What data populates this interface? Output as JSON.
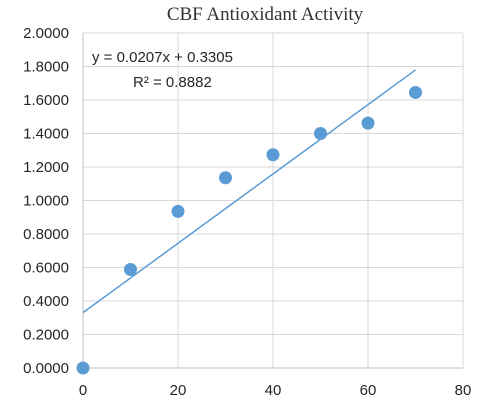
{
  "chart_data": {
    "type": "scatter",
    "title": "CBF Antioxidant Activity",
    "xlabel": "",
    "ylabel": "",
    "xlim": [
      0,
      80
    ],
    "ylim": [
      0,
      2
    ],
    "x_ticks": [
      0,
      20,
      40,
      60,
      80
    ],
    "y_ticks": [
      0,
      0.2,
      0.4,
      0.6,
      0.8,
      1.0,
      1.2,
      1.4,
      1.6,
      1.8,
      2.0
    ],
    "y_tick_labels": [
      "0.0000",
      "0.2000",
      "0.4000",
      "0.6000",
      "0.8000",
      "1.0000",
      "1.2000",
      "1.4000",
      "1.6000",
      "1.8000",
      "2.0000"
    ],
    "x_tick_labels": [
      "0",
      "20",
      "40",
      "60",
      "80"
    ],
    "grid": true,
    "series": [
      {
        "x": [
          0,
          10,
          20,
          30,
          40,
          50,
          60,
          70
        ],
        "y": [
          0.0,
          0.588,
          0.935,
          1.136,
          1.273,
          1.4,
          1.462,
          1.645
        ],
        "color": "#5b9bd5"
      }
    ],
    "trendline": {
      "slope": 0.0207,
      "intercept": 0.3305,
      "x_range": [
        0,
        70
      ],
      "color": "#5b9bd5",
      "equation": "y = 0.0207x + 0.3305",
      "r_squared": "R² = 0.8882"
    }
  }
}
